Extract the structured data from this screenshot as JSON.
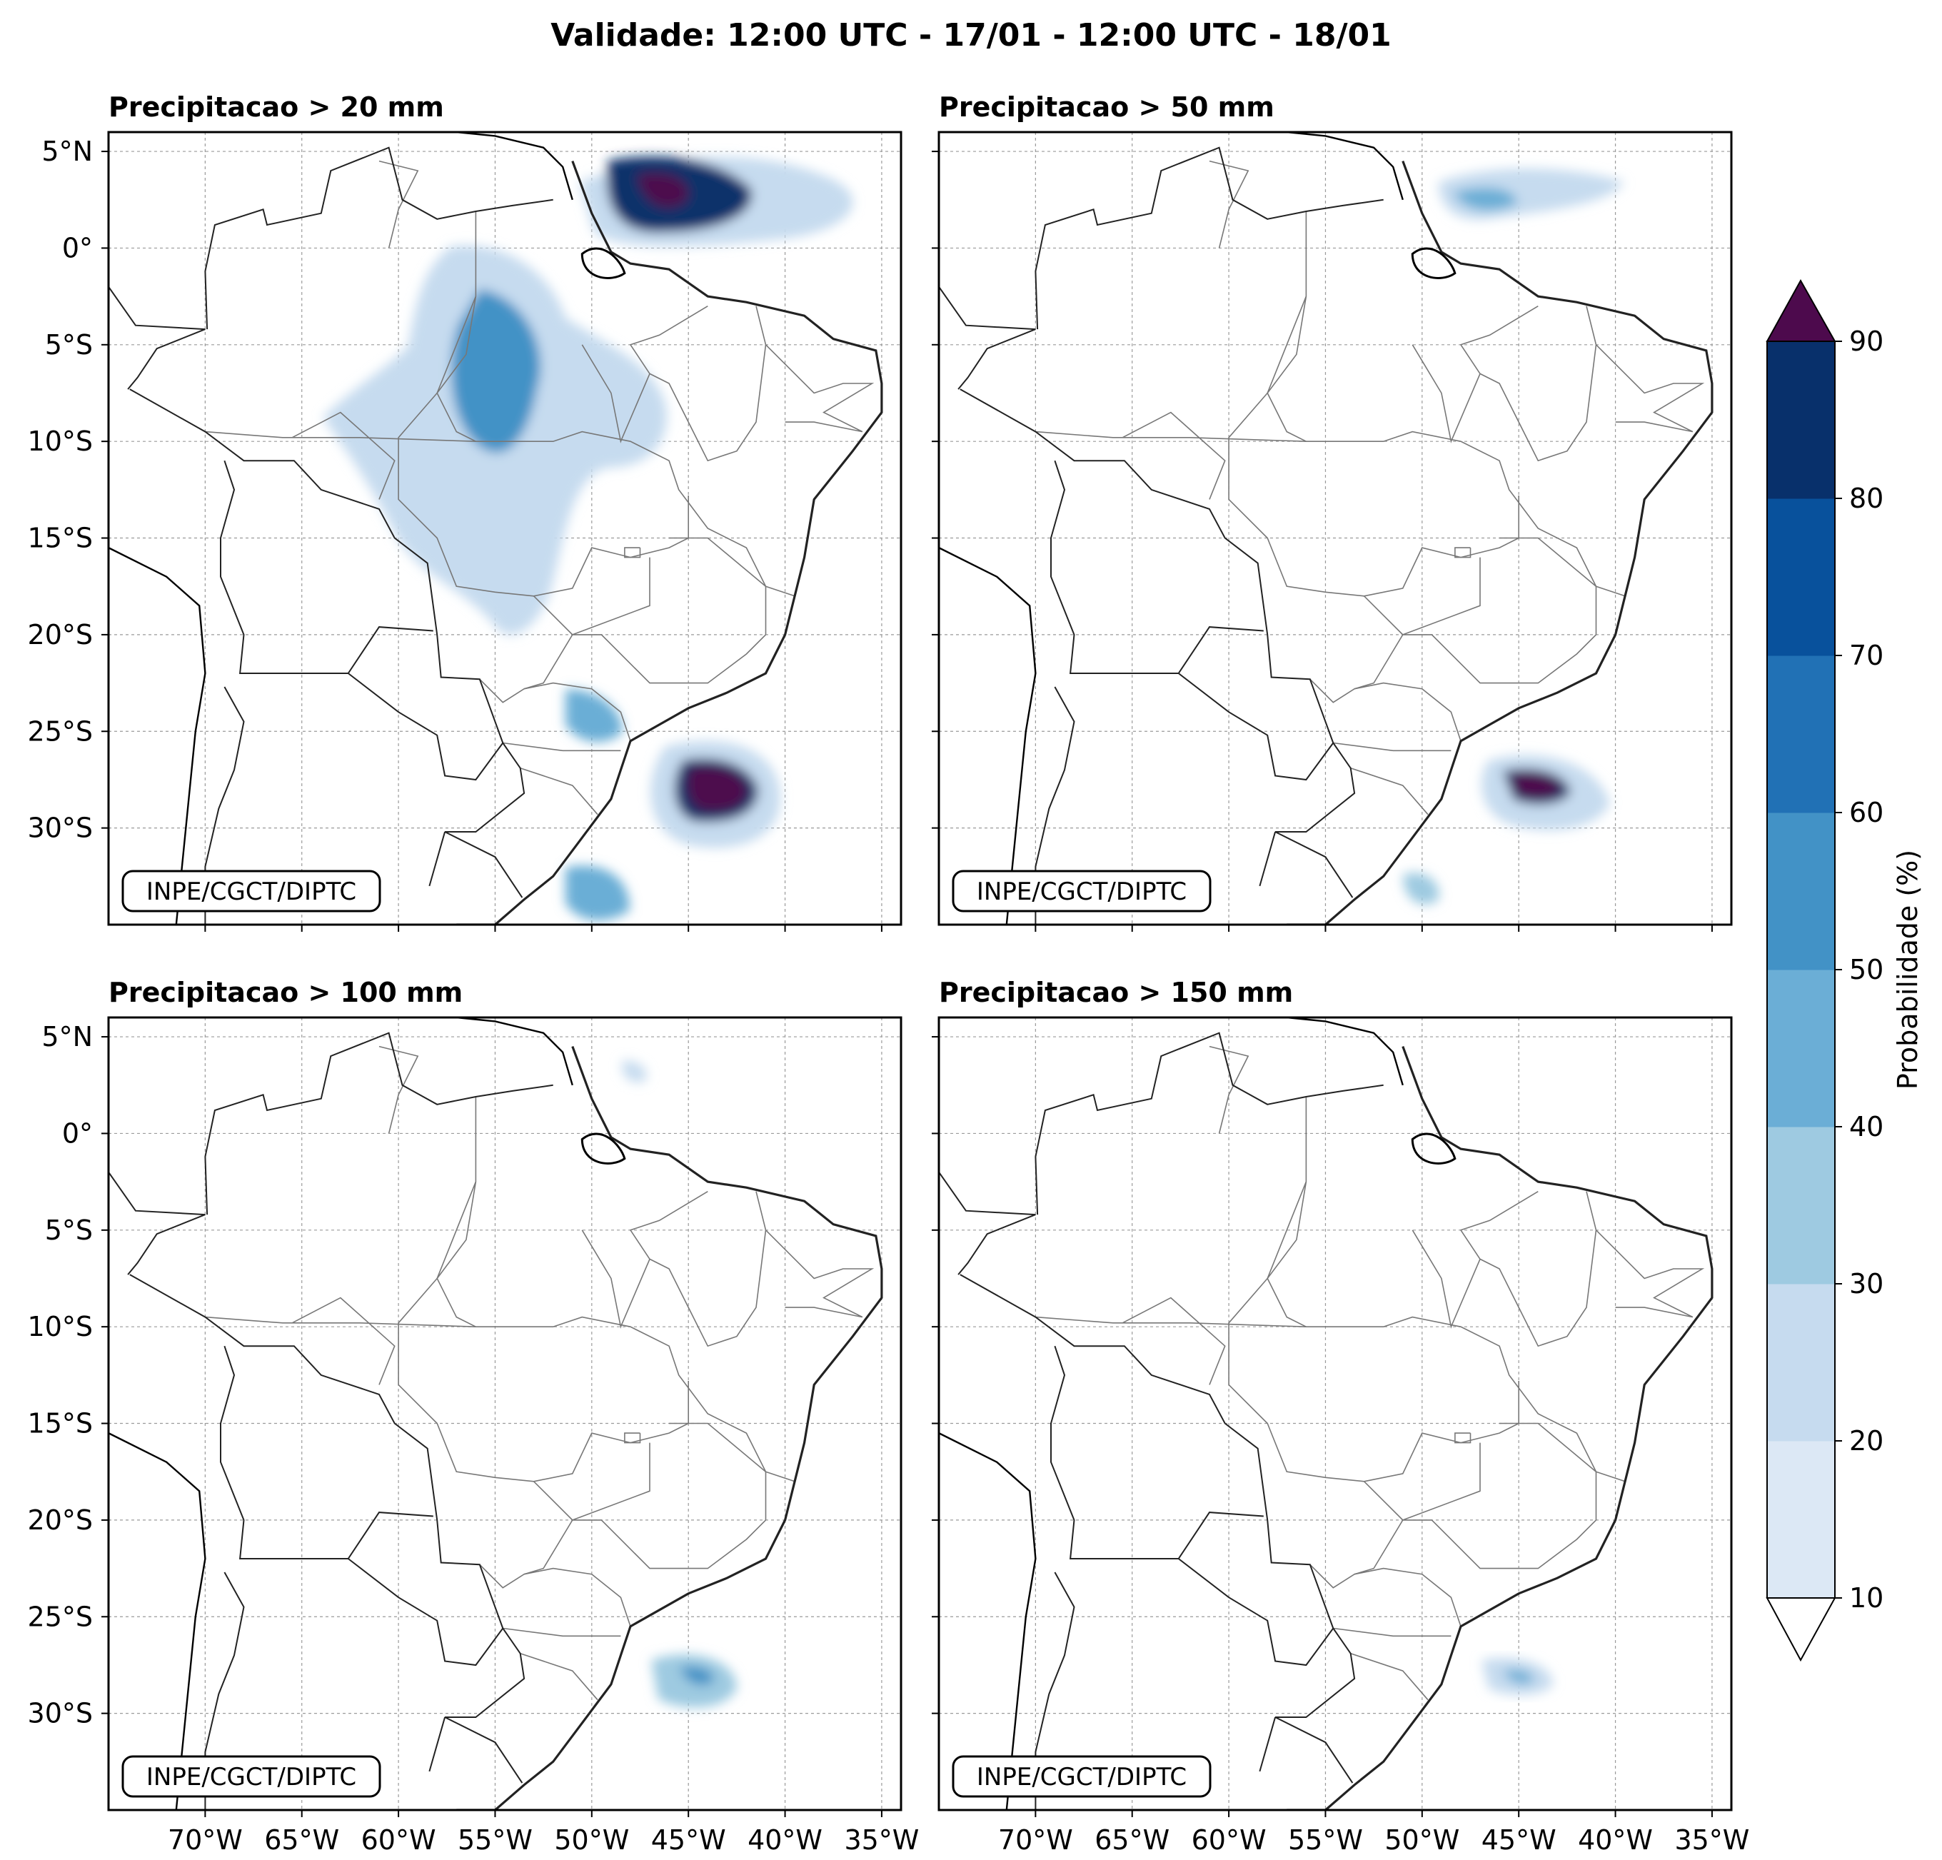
{
  "figure": {
    "title": "Validade: 12:00 UTC - 17/01 - 12:00 UTC - 18/01"
  },
  "panels": [
    {
      "title": "Precipitacao > 20 mm",
      "credit": "INPE/CGCT/DIPTC"
    },
    {
      "title": "Precipitacao > 50 mm",
      "credit": "INPE/CGCT/DIPTC"
    },
    {
      "title": "Precipitacao > 100 mm",
      "credit": "INPE/CGCT/DIPTC"
    },
    {
      "title": "Precipitacao > 150 mm",
      "credit": "INPE/CGCT/DIPTC"
    }
  ],
  "axes": {
    "lat_ticks": [
      "5°N",
      "0°",
      "5°S",
      "10°S",
      "15°S",
      "20°S",
      "25°S",
      "30°S"
    ],
    "lon_ticks": [
      "70°W",
      "65°W",
      "60°W",
      "55°W",
      "50°W",
      "45°W",
      "40°W",
      "35°W"
    ]
  },
  "colorbar": {
    "label": "Probabilidade (%)",
    "ticks": [
      "10",
      "20",
      "30",
      "40",
      "50",
      "60",
      "70",
      "80",
      "90"
    ],
    "colors": [
      "#dce8f5",
      "#c6dbef",
      "#9ecae1",
      "#6baed6",
      "#4292c6",
      "#2171b5",
      "#08519c",
      "#08306b"
    ],
    "over_color": "#4d0a4d",
    "under_color": "#ffffff"
  }
}
